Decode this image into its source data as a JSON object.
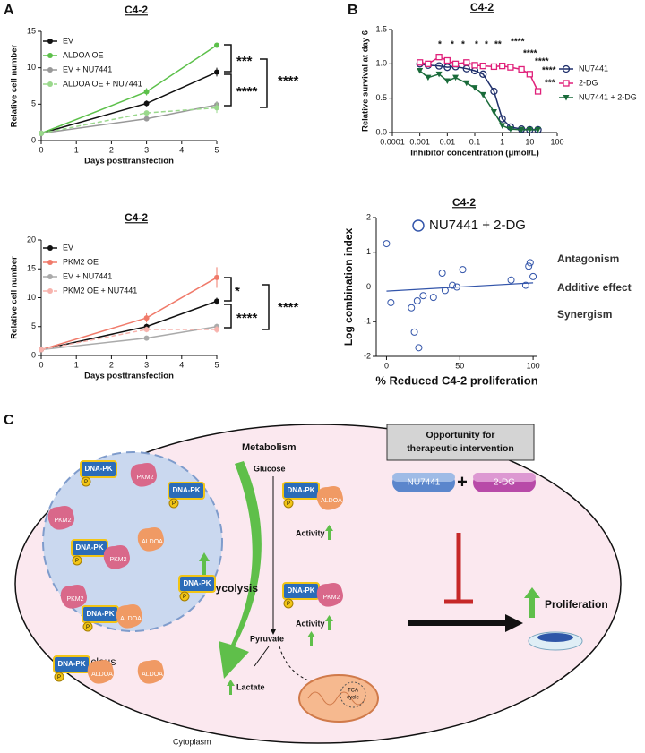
{
  "panel_labels": [
    "A",
    "B",
    "C"
  ],
  "chart_data": [
    {
      "type": "line",
      "title": "C4-2",
      "xlabel": "Days posttransfection",
      "ylabel": "Relative cell number",
      "x": [
        0,
        3,
        5
      ],
      "xlim": [
        0,
        5
      ],
      "xticks": [
        0,
        1,
        2,
        3,
        4,
        5
      ],
      "ylim": [
        0,
        15
      ],
      "yticks": [
        0,
        5,
        10,
        15
      ],
      "legend": "upper left",
      "series": [
        {
          "name": "EV",
          "color": "#111111",
          "style": "solid",
          "marker": "circle",
          "values": [
            1,
            5.1,
            9.4
          ],
          "errors": [
            0,
            0.4,
            0.6
          ]
        },
        {
          "name": "ALDOA OE",
          "color": "#5cc04a",
          "style": "solid",
          "marker": "circle",
          "values": [
            1,
            6.7,
            13.1
          ],
          "errors": [
            0,
            0.5,
            0.2
          ]
        },
        {
          "name": "EV + NU7441",
          "color": "#999999",
          "style": "solid",
          "marker": "circle",
          "values": [
            1,
            3,
            4.9
          ],
          "errors": [
            0,
            0.2,
            0.5
          ]
        },
        {
          "name": "ALDOA OE + NU7441",
          "color": "#9ad88c",
          "style": "dashed",
          "marker": "circle",
          "values": [
            1,
            3.8,
            4.5
          ],
          "errors": [
            0,
            0.3,
            0.7
          ]
        }
      ],
      "annotations": [
        "***",
        "****",
        "****"
      ]
    },
    {
      "type": "line",
      "title": "C4-2",
      "xlabel": "Days posttransfection",
      "ylabel": "Relative cell number",
      "x": [
        0,
        3,
        5
      ],
      "xlim": [
        0,
        5
      ],
      "xticks": [
        0,
        1,
        2,
        3,
        4,
        5
      ],
      "ylim": [
        0,
        20
      ],
      "yticks": [
        0,
        5,
        10,
        15,
        20
      ],
      "legend": "upper left",
      "series": [
        {
          "name": "EV",
          "color": "#111111",
          "style": "solid",
          "marker": "circle",
          "values": [
            1,
            5,
            9.4
          ],
          "errors": [
            0,
            0.5,
            0.6
          ]
        },
        {
          "name": "PKM2 OE",
          "color": "#f07a6a",
          "style": "solid",
          "marker": "circle",
          "values": [
            1,
            6.5,
            13.5
          ],
          "errors": [
            0,
            0.8,
            1.8
          ]
        },
        {
          "name": "EV + NU7441",
          "color": "#aaaaaa",
          "style": "solid",
          "marker": "circle",
          "values": [
            1,
            3,
            5
          ],
          "errors": [
            0,
            0.2,
            0.5
          ]
        },
        {
          "name": "PKM2 OE + NU7441",
          "color": "#f7b3ad",
          "style": "dashed",
          "marker": "circle",
          "values": [
            1,
            4.5,
            4.5
          ],
          "errors": [
            0,
            0.5,
            0.6
          ]
        }
      ],
      "annotations": [
        "*",
        "****",
        "****"
      ]
    },
    {
      "type": "line",
      "title": "C4-2",
      "xlabel": "Inhibitor concentration (μmol/L)",
      "ylabel": "Relative survival at day 6",
      "xscale": "log",
      "x": [
        0.001,
        0.002,
        0.005,
        0.01,
        0.02,
        0.05,
        0.1,
        0.2,
        0.5,
        1,
        2,
        5,
        10,
        20
      ],
      "xlim": [
        0.0001,
        100
      ],
      "xticks": [
        0.0001,
        0.001,
        0.01,
        0.1,
        1,
        10,
        100
      ],
      "ylim": [
        0,
        1.5
      ],
      "yticks": [
        {
          "value": 0,
          "label": "0.0"
        },
        0.5,
        {
          "value": 1,
          "label": "1.0"
        },
        1.5
      ],
      "legend": "right",
      "series": [
        {
          "name": "NU7441",
          "color": "#1f2f6b",
          "style": "solid",
          "marker": "circle-open",
          "values": [
            1,
            0.98,
            0.97,
            0.95,
            0.96,
            0.93,
            0.9,
            0.85,
            0.6,
            0.2,
            0.08,
            0.05,
            0.04,
            0.04
          ]
        },
        {
          "name": "2-DG",
          "color": "#e0207a",
          "style": "solid",
          "marker": "square-open",
          "values": [
            1.02,
            1,
            1.1,
            1.05,
            1,
            1.02,
            0.98,
            0.97,
            0.96,
            0.97,
            0.95,
            0.92,
            0.85,
            0.6
          ]
        },
        {
          "name": "NU7441 + 2-DG",
          "color": "#1a6b3a",
          "style": "solid",
          "marker": "triangle-down",
          "values": [
            0.9,
            0.8,
            0.85,
            0.75,
            0.8,
            0.72,
            0.65,
            0.55,
            0.3,
            0.1,
            0.05,
            0.04,
            0.04,
            0.04
          ]
        }
      ],
      "annotations": [
        "*",
        "*",
        "*",
        "*",
        "*",
        "**",
        "****",
        "****",
        "****",
        "****",
        "***"
      ]
    },
    {
      "type": "scatter",
      "title": "C4-2",
      "xlabel": "% Reduced C4-2 proliferation",
      "ylabel": "Log combination index",
      "xlim": [
        -7,
        103
      ],
      "xticks": [
        0,
        50,
        100
      ],
      "ylim": [
        -2,
        2
      ],
      "yticks": [
        -2,
        -1,
        0,
        1,
        2
      ],
      "legend": "upper left",
      "series": [
        {
          "name": "NU7441 + 2-DG",
          "color": "#3355aa",
          "marker": "circle-open",
          "x": [
            0,
            3,
            17,
            19,
            21,
            22,
            25,
            32,
            38,
            40,
            45,
            48,
            52,
            85,
            95,
            97,
            98,
            100
          ],
          "values": [
            1.25,
            -0.45,
            -0.6,
            -1.3,
            -0.4,
            -1.75,
            -0.25,
            -0.3,
            0.4,
            -0.1,
            0.05,
            0,
            0.5,
            0.2,
            0.05,
            0.6,
            0.7,
            0.3
          ]
        }
      ],
      "trendline": {
        "x": [
          0,
          100
        ],
        "values": [
          -0.12,
          0.12
        ]
      },
      "annotations": [
        "Antagonism",
        "Additive effect",
        "Synergism"
      ]
    }
  ],
  "diagram": {
    "metabolism": "Metabolism",
    "glucose": "Glucose",
    "pyruvate": "Pyruvate",
    "lactate": "Lactate",
    "glycolysis": "Glycolysis",
    "activity": "Activity",
    "nucleus": "Nucleus",
    "cytoplasm": "Cytoplasm",
    "tca": [
      "TCA",
      "cycle"
    ],
    "opportunity": [
      "Opportunity for",
      "therapeutic intervention"
    ],
    "drug_a": "NU7441",
    "plus": "+",
    "drug_b": "2-DG",
    "proliferation": "Proliferation",
    "dna_pk": "DNA-PK",
    "pkm2": "PKM2",
    "aldoa": "ALDOA",
    "phospho": "P"
  }
}
